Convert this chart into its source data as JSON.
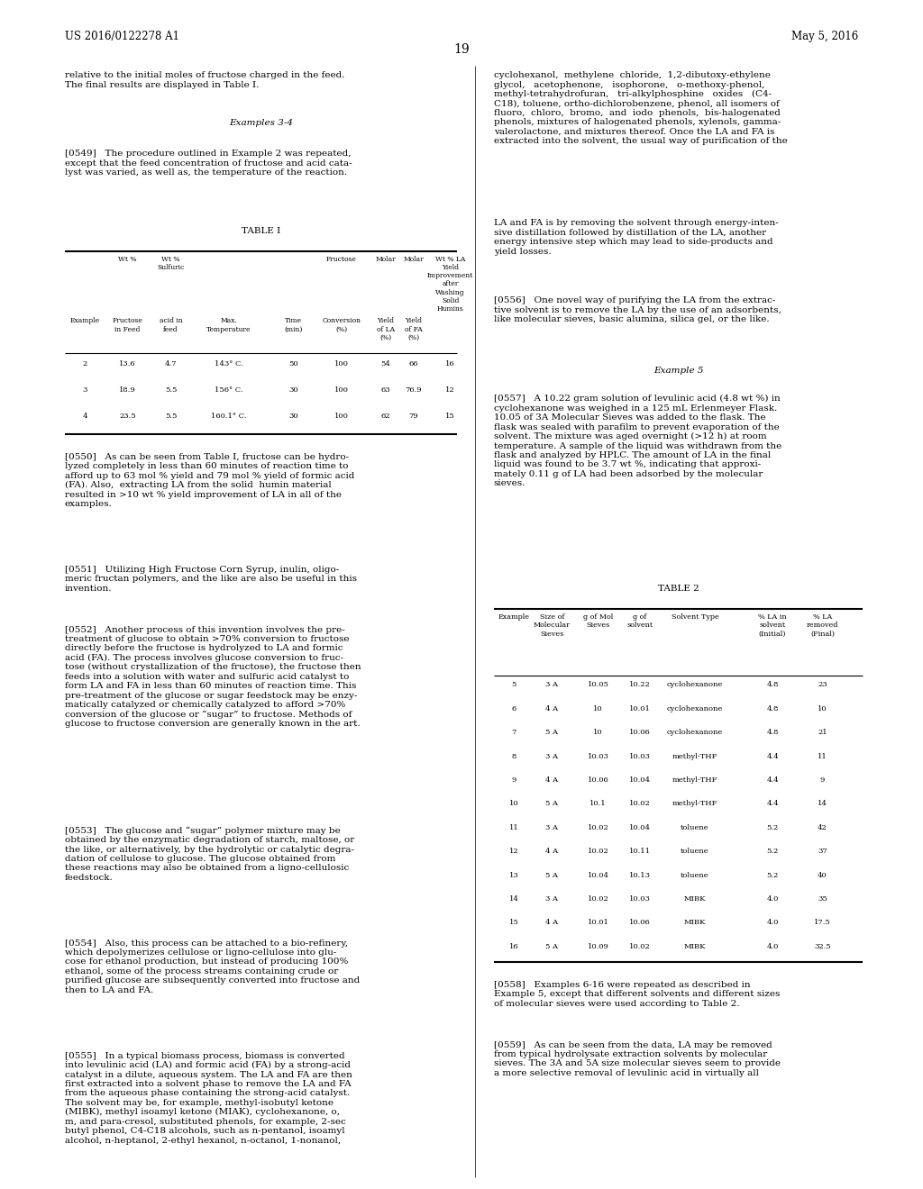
{
  "background_color": "#ffffff",
  "page_number": "19",
  "header_left": "US 2016/0122278 A1",
  "header_right": "May 5, 2016",
  "table1": {
    "rows": [
      [
        "2",
        "13.6",
        "4.7",
        "143° C.",
        "50",
        "100",
        "54",
        "66",
        "16"
      ],
      [
        "3",
        "18.9",
        "5.5",
        "156° C.",
        "30",
        "100",
        "63",
        "76.9",
        "12"
      ],
      [
        "4",
        "23.5",
        "5.5",
        "160.1° C.",
        "30",
        "100",
        "62",
        "79",
        "15"
      ]
    ]
  },
  "table2": {
    "col_headers": [
      "Example",
      "Size of\nMolecular\nSieves",
      "g of Mol\nSieves",
      "g of\nsolvent",
      "Solvent Type",
      "% LA in\nsolvent\n(Initial)",
      "% LA\nremoved\n(Final)"
    ],
    "rows": [
      [
        "5",
        "3 A",
        "10.05",
        "10.22",
        "cyclohexanone",
        "4.8",
        "23"
      ],
      [
        "6",
        "4 A",
        "10",
        "10.01",
        "cyclohexanone",
        "4.8",
        "10"
      ],
      [
        "7",
        "5 A",
        "10",
        "10.06",
        "cyclohexanone",
        "4.8",
        "21"
      ],
      [
        "8",
        "3 A",
        "10.03",
        "10.03",
        "methyl-THF",
        "4.4",
        "11"
      ],
      [
        "9",
        "4 A",
        "10.06",
        "10.04",
        "methyl-THF",
        "4.4",
        "9"
      ],
      [
        "10",
        "5 A",
        "10.1",
        "10.02",
        "methyl-THF",
        "4.4",
        "14"
      ],
      [
        "11",
        "3 A",
        "10.02",
        "10.04",
        "toluene",
        "5.2",
        "42"
      ],
      [
        "12",
        "4 A",
        "10.02",
        "10.11",
        "toluene",
        "5.2",
        "37"
      ],
      [
        "13",
        "5 A",
        "10.04",
        "10.13",
        "toluene",
        "5.2",
        "40"
      ],
      [
        "14",
        "3 A",
        "10.02",
        "10.03",
        "MIBK",
        "4.0",
        "35"
      ],
      [
        "15",
        "4 A",
        "10.01",
        "10.06",
        "MIBK",
        "4.0",
        "17.5"
      ],
      [
        "16",
        "5 A",
        "10.09",
        "10.02",
        "MIBK",
        "4.0",
        "32.5"
      ]
    ]
  }
}
